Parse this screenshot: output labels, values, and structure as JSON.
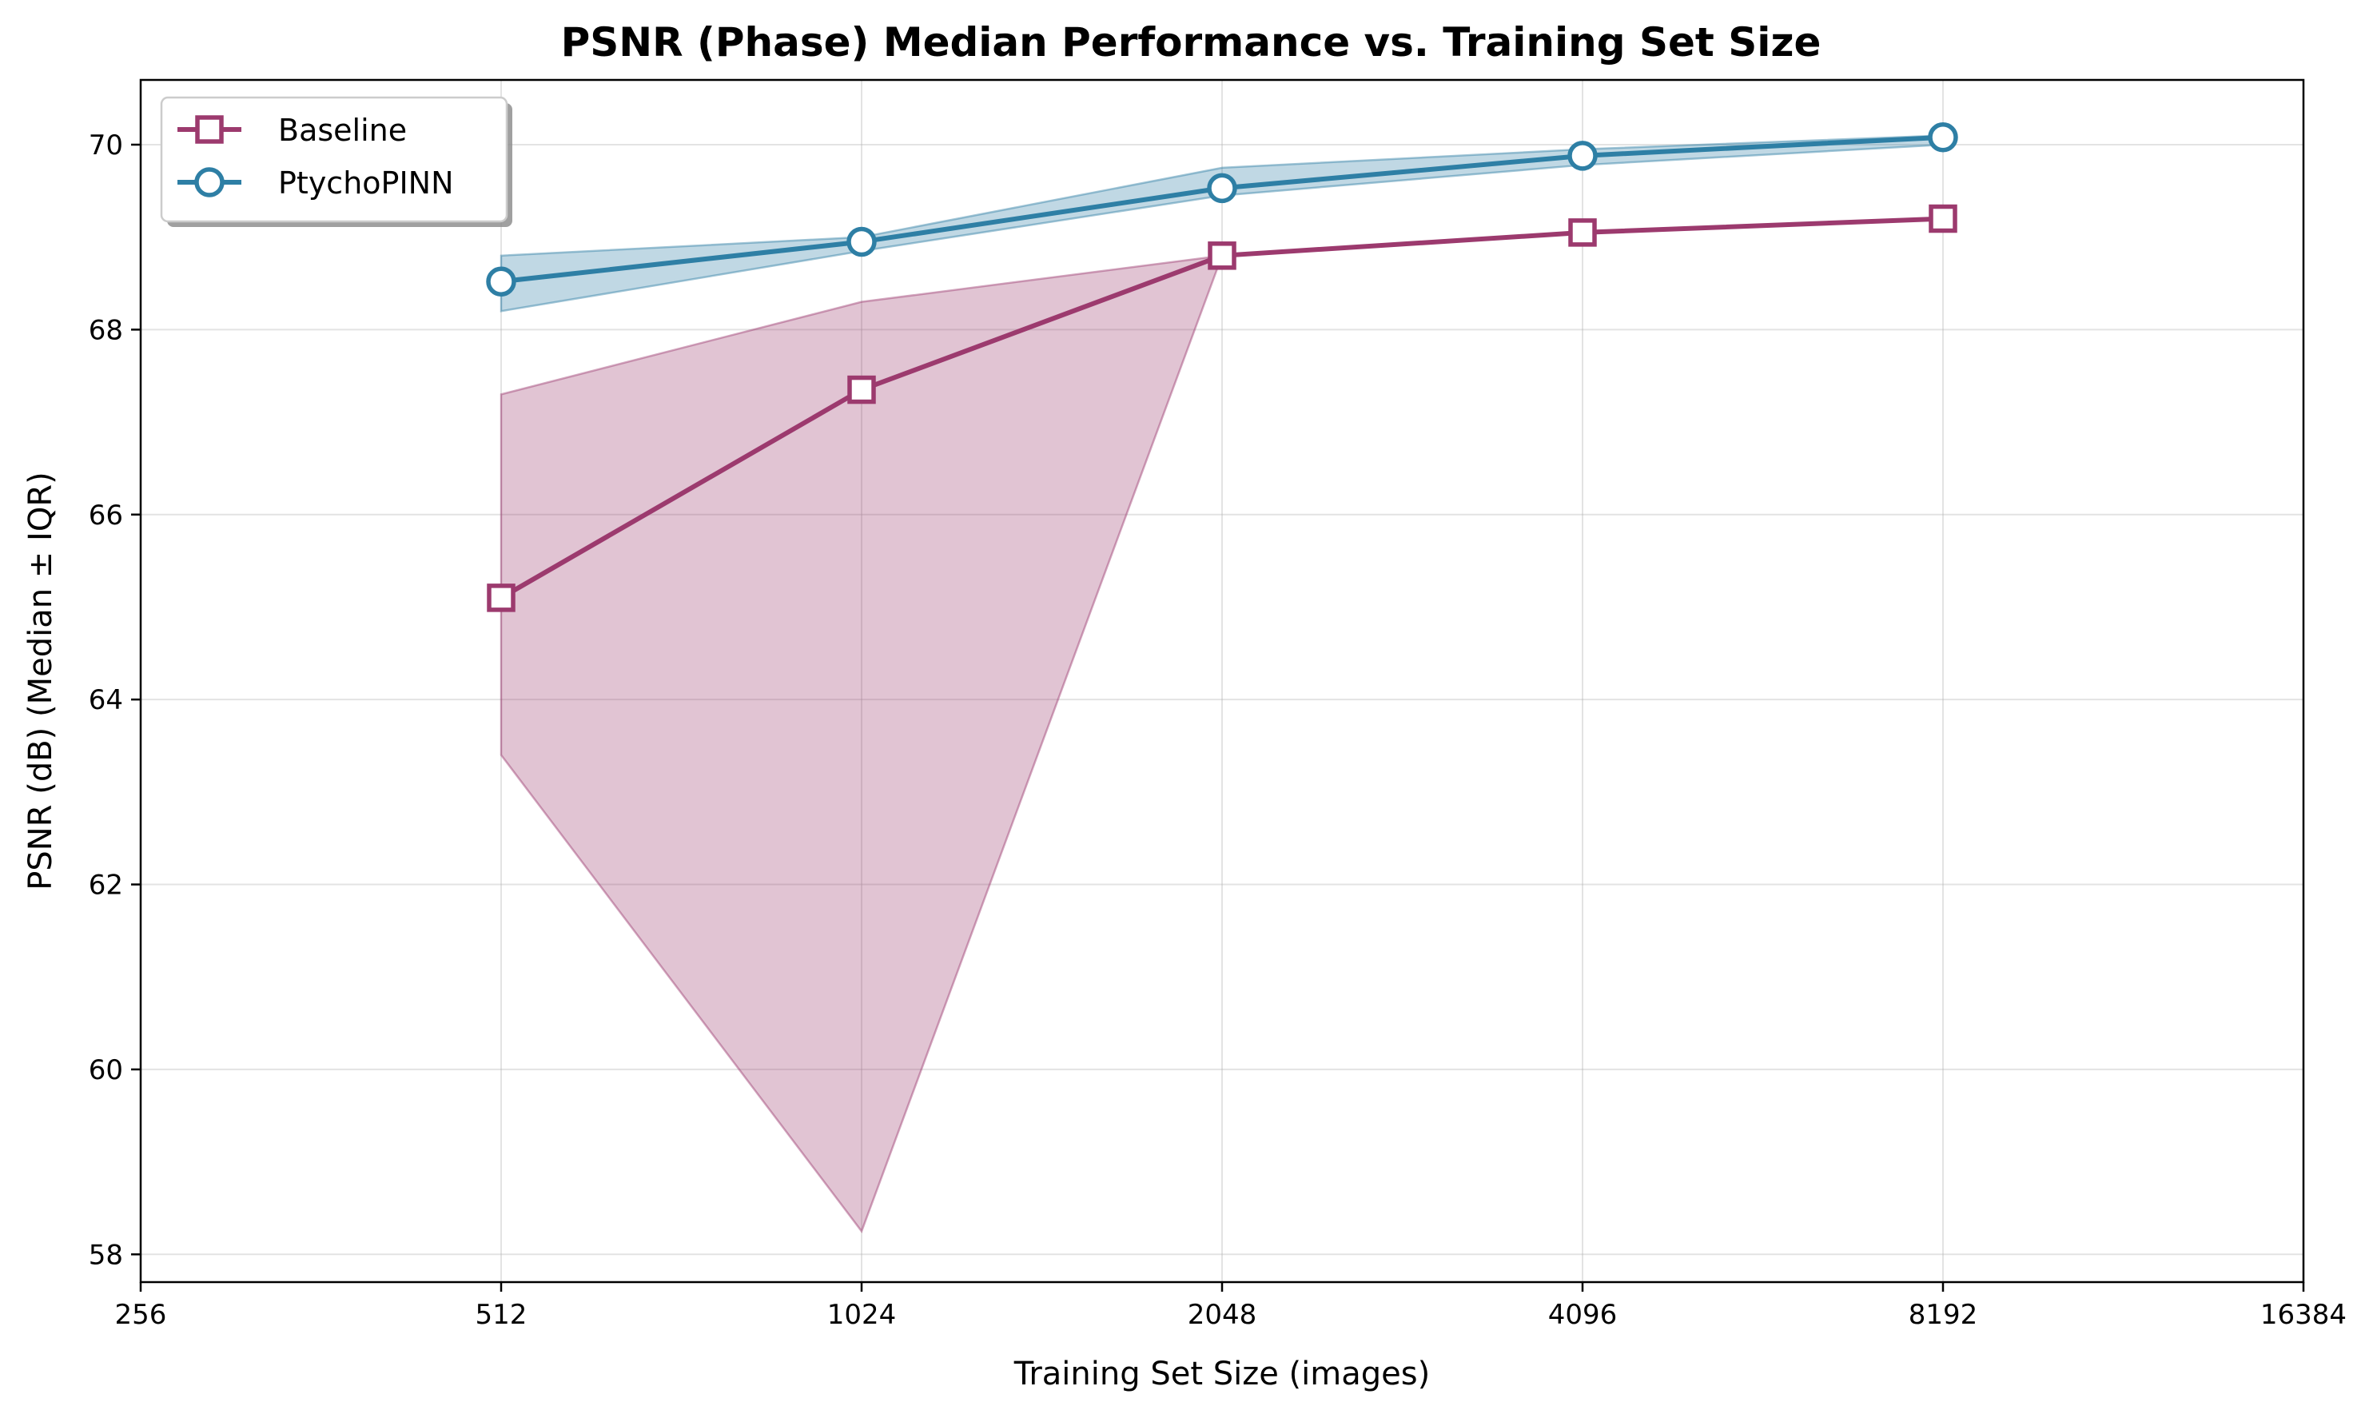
{
  "chart_data": {
    "type": "line",
    "title": "PSNR (Phase) Median Performance vs. Training Set Size",
    "xlabel": "Training Set Size (images)",
    "ylabel": "PSNR (dB) (Median ± IQR)",
    "xscale": "log2",
    "xlim": [
      256,
      16384
    ],
    "ylim": [
      57.7,
      70.7
    ],
    "xticks": [
      256,
      512,
      1024,
      2048,
      4096,
      8192,
      16384
    ],
    "xtick_labels": [
      "256",
      "512",
      "1024",
      "2048",
      "4096",
      "8192",
      "16384"
    ],
    "yticks": [
      58,
      60,
      62,
      64,
      66,
      68,
      70
    ],
    "ytick_labels": [
      "58",
      "60",
      "62",
      "64",
      "66",
      "68",
      "70"
    ],
    "grid": true,
    "legend_position": "top-left",
    "series": [
      {
        "name": "Baseline",
        "color": "#9c3a6e",
        "marker": "square",
        "x": [
          512,
          1024,
          2048,
          4096,
          8192
        ],
        "y": [
          65.1,
          67.35,
          68.8,
          69.05,
          69.2
        ],
        "band_x": [
          512,
          1024,
          2048
        ],
        "band_upper": [
          67.3,
          68.3,
          68.8
        ],
        "band_lower": [
          63.4,
          58.25,
          68.8
        ]
      },
      {
        "name": "PtychoPINN",
        "color": "#2e7fa5",
        "marker": "circle",
        "x": [
          512,
          1024,
          2048,
          4096,
          8192
        ],
        "y": [
          68.52,
          68.95,
          69.53,
          69.88,
          70.08
        ],
        "band_x": [
          512,
          1024,
          2048,
          4096,
          8192
        ],
        "band_upper": [
          68.8,
          69.0,
          69.75,
          69.95,
          70.1
        ],
        "band_lower": [
          68.2,
          68.85,
          69.45,
          69.78,
          70.0
        ]
      }
    ]
  }
}
